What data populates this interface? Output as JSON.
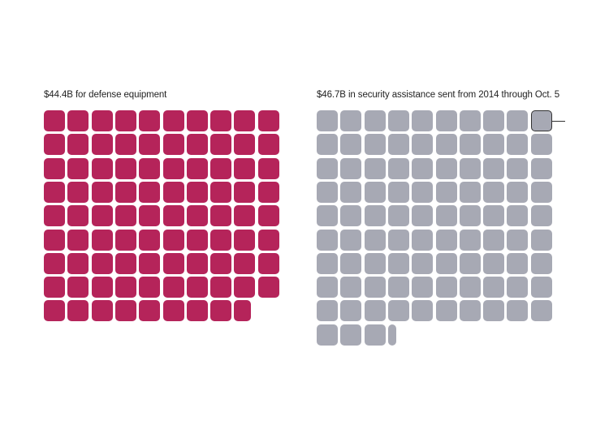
{
  "chart_data": [
    {
      "type": "waffle",
      "title": "$44.4B for defense equipment",
      "value": 44.4,
      "unit_value": 0.5,
      "color": "#b5245a"
    },
    {
      "type": "waffle",
      "title": "$46.7B in security assistance sent from 2014 through Oct. 5",
      "value": 46.7,
      "unit_value": 0.5,
      "color": "#a7a9b4",
      "highlight": {
        "index": 9,
        "color": "#a7a9b4",
        "outline": "#333333"
      }
    }
  ]
}
